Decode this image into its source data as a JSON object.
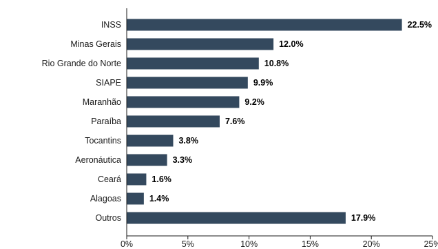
{
  "chart_data": {
    "type": "bar",
    "orientation": "horizontal",
    "categories": [
      "INSS",
      "Minas Gerais",
      "Rio Grande do Norte",
      "SIAPE",
      "Maranhão",
      "Paraíba",
      "Tocantins",
      "Aeronáutica",
      "Ceará",
      "Alagoas",
      "Outros"
    ],
    "values": [
      22.5,
      12.0,
      10.8,
      9.9,
      9.2,
      7.6,
      3.8,
      3.3,
      1.6,
      1.4,
      17.9
    ],
    "value_labels": [
      "22.5%",
      "12.0%",
      "10.8%",
      "9.9%",
      "9.2%",
      "7.6%",
      "3.8%",
      "3.3%",
      "1.6%",
      "1.4%",
      "17.9%"
    ],
    "x_ticks": [
      0,
      5,
      10,
      15,
      20,
      25
    ],
    "x_tick_labels": [
      "0%",
      "5%",
      "10%",
      "15%",
      "20%",
      "25%"
    ],
    "xlim": [
      0,
      25
    ],
    "bar_color": "#34495e",
    "grid": false,
    "legend": "none",
    "title": "",
    "xlabel": "",
    "ylabel": ""
  }
}
